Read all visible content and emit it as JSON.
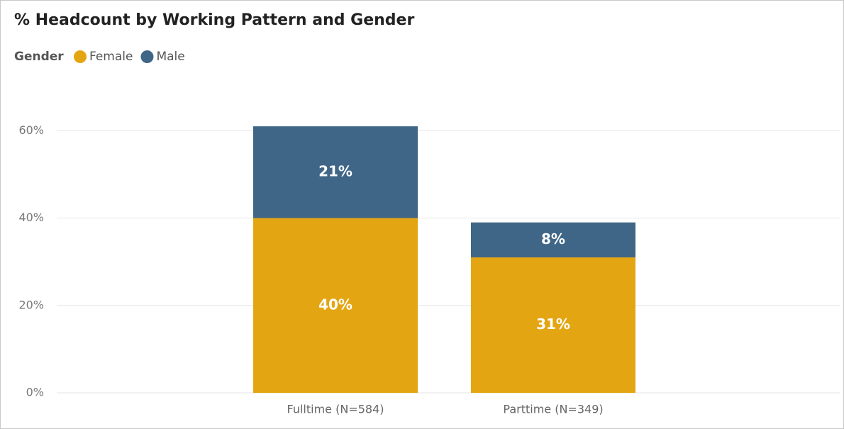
{
  "chart_data": {
    "type": "stacked_bar",
    "title": "% Headcount by Working Pattern and Gender",
    "legend_title": "Gender",
    "categories": [
      "Fulltime (N=584)",
      "Parttime (N=349)"
    ],
    "series": [
      {
        "name": "Female",
        "color": "#e3a612",
        "values": [
          40,
          31
        ],
        "value_labels": [
          "40%",
          "31%"
        ]
      },
      {
        "name": "Male",
        "color": "#3f6686",
        "values": [
          21,
          8
        ],
        "value_labels": [
          "21%",
          "8%"
        ]
      }
    ],
    "ylim": [
      0,
      68
    ],
    "yticks": [
      {
        "value": 0,
        "label": "0%"
      },
      {
        "value": 20,
        "label": "20%"
      },
      {
        "value": 40,
        "label": "40%"
      },
      {
        "value": 60,
        "label": "60%"
      }
    ],
    "grid": true,
    "legend": "top-left"
  }
}
